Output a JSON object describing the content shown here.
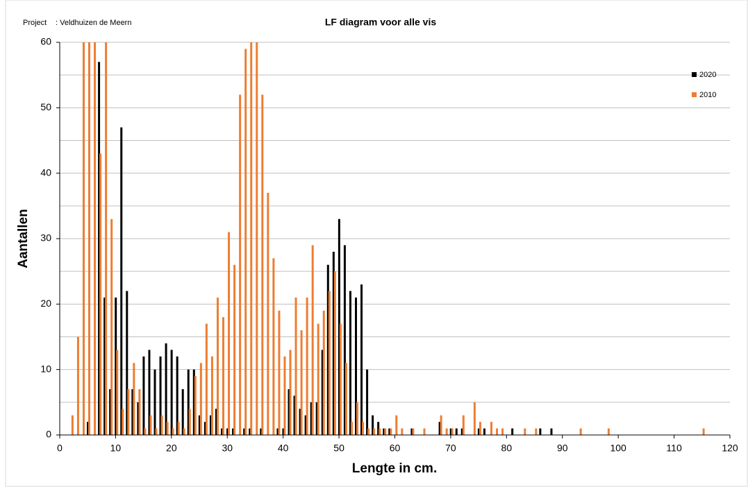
{
  "chart_data": {
    "type": "bar",
    "project_label": "Project",
    "project_name": ": Veldhuizen de Meern",
    "title": "LF diagram voor alle vis",
    "xlabel": "Lengte in cm.",
    "ylabel": "Aantallen",
    "xlim": [
      0,
      120
    ],
    "xticks": [
      0,
      10,
      20,
      30,
      40,
      50,
      60,
      70,
      80,
      90,
      100,
      110,
      120
    ],
    "ylim": [
      0,
      60
    ],
    "yticks": [
      0,
      10,
      20,
      30,
      40,
      50,
      60
    ],
    "ygridlines": [
      5,
      10,
      15,
      20,
      25,
      30,
      35,
      40,
      45,
      50,
      55,
      60
    ],
    "grid": true,
    "legend": "upper right",
    "series": [
      {
        "name": "2020",
        "color": "#000000",
        "x": [
          5,
          7,
          8,
          9,
          10,
          11,
          12,
          13,
          14,
          15,
          16,
          17,
          18,
          19,
          20,
          21,
          22,
          23,
          24,
          25,
          26,
          27,
          28,
          29,
          30,
          31,
          33,
          34,
          36,
          39,
          40,
          41,
          42,
          43,
          44,
          45,
          46,
          47,
          48,
          49,
          50,
          51,
          52,
          53,
          54,
          55,
          56,
          57,
          58,
          59,
          63,
          68,
          70,
          71,
          72,
          75,
          76,
          81,
          86,
          88
        ],
        "values": [
          2,
          57,
          21,
          7,
          21,
          47,
          22,
          7,
          5,
          12,
          13,
          10,
          12,
          14,
          13,
          12,
          7,
          10,
          10,
          3,
          2,
          3,
          4,
          1,
          1,
          1,
          1,
          1,
          1,
          1,
          1,
          7,
          6,
          4,
          3,
          5,
          5,
          13,
          26,
          28,
          33,
          29,
          22,
          21,
          23,
          10,
          3,
          2,
          1,
          1,
          1,
          2,
          1,
          1,
          1,
          1,
          1,
          1,
          1,
          1
        ]
      },
      {
        "name": "2010",
        "color": "#ed7d31",
        "x": [
          2,
          3,
          4,
          5,
          6,
          7,
          8,
          9,
          10,
          11,
          12,
          13,
          14,
          15,
          16,
          17,
          18,
          19,
          20,
          21,
          22,
          23,
          24,
          25,
          26,
          27,
          28,
          29,
          30,
          31,
          32,
          33,
          34,
          35,
          36,
          37,
          38,
          39,
          40,
          41,
          42,
          43,
          44,
          45,
          46,
          47,
          48,
          49,
          50,
          51,
          52,
          53,
          54,
          55,
          56,
          57,
          58,
          59,
          60,
          61,
          63,
          65,
          68,
          69,
          70,
          72,
          74,
          75,
          77,
          78,
          79,
          83,
          85,
          93,
          98,
          115
        ],
        "values": [
          3,
          15,
          60,
          60,
          60,
          43,
          60,
          33,
          13,
          4,
          7,
          11,
          7,
          1,
          3,
          1,
          3,
          2,
          1,
          2,
          1,
          4,
          9,
          11,
          17,
          12,
          21,
          18,
          31,
          26,
          52,
          59,
          60,
          60,
          52,
          37,
          27,
          19,
          12,
          13,
          21,
          16,
          21,
          29,
          17,
          19,
          22,
          25,
          17,
          11,
          2,
          5,
          2,
          1,
          1,
          1,
          1,
          1,
          3,
          1,
          1,
          1,
          3,
          1,
          1,
          3,
          5,
          2,
          2,
          1,
          1,
          1,
          1,
          1,
          1,
          1
        ]
      }
    ]
  }
}
